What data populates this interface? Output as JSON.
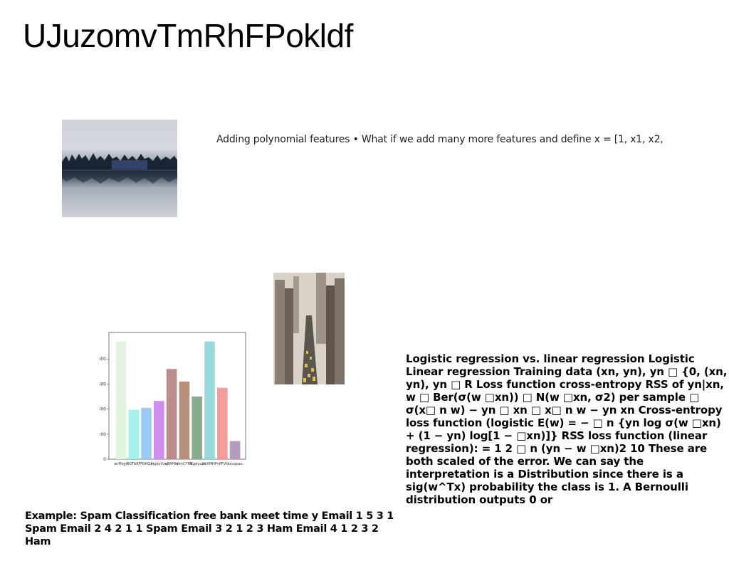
{
  "title": "UJuzomvTmRhFPokldf",
  "caption": "Adding polynomial features • What if we add many more features and define x = [1, x1, x2,",
  "logistic_paragraph": "Logistic regression vs. linear regression Logistic Linear regression Training data (xn, yn), yn □ {0, (xn, yn), yn □ R Loss function cross-entropy RSS of yn|xn, w □ Ber(σ(w □xn)) □ N(w □xn, σ2) per sample □ σ(x□ n w) − yn □ xn □ x□ n w − yn xn Cross-entropy loss function (logistic E(w) = − □ n {yn log σ(w □xn) + (1 − yn) log[1 − □xn)]} RSS loss function (linear regression): = 1 2 □ n (yn − w □xn)2 10 These are both scaled of the error. We can say the interpretation is a Distribution since there is a sig(w^Tx) probability the class is 1. A Bernoulli distribution outputs 0 or",
  "example_text": "Example: Spam Classification free bank meet time y Email 1 5 3 1 Spam Email 2 4 2 1 1 Spam Email 3 2 1 2 3 Ham Email 4 1 2 3 2 Ham",
  "images": {
    "lake": "lake-photo",
    "city": "city-street-photo"
  },
  "chart_data": {
    "type": "bar",
    "categories": [
      "wrMsgd",
      "RGTbRF",
      "FBHQz",
      "ldgdyVzq",
      "eBMHkf",
      "eimCYYN",
      "hXgdyxzK",
      "bxXMHP",
      "nPFVk",
      "kavxpau"
    ],
    "values": [
      940,
      395,
      410,
      465,
      720,
      620,
      500,
      940,
      570,
      145
    ],
    "colors": [
      "#dff5dc",
      "#a8f0ea",
      "#9ccbf5",
      "#cf8ef0",
      "#ba8d8c",
      "#b8907a",
      "#88ad8c",
      "#98d9dc",
      "#f59c96",
      "#b49cbf"
    ],
    "yticks": [
      "0",
      "200",
      "400",
      "600",
      "800"
    ],
    "ylim": [
      0,
      1000
    ],
    "grid": false
  }
}
